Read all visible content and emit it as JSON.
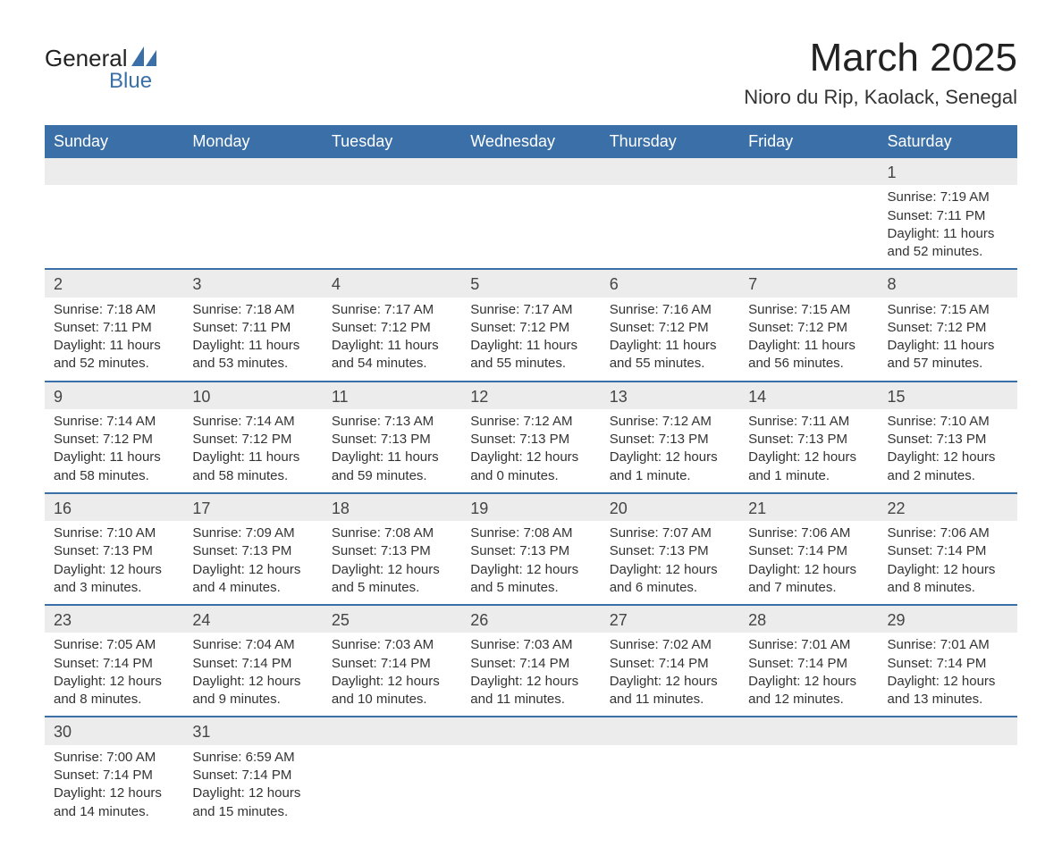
{
  "logo": {
    "top": "General",
    "bottom": "Blue",
    "sail_color": "#3b6fa8"
  },
  "title": "March 2025",
  "location": "Nioro du Rip, Kaolack, Senegal",
  "colors": {
    "header_bg": "#3b6fa8",
    "header_text": "#ffffff",
    "daynum_bg": "#ececec",
    "row_border": "#3b6fa8",
    "text": "#333333",
    "background": "#ffffff"
  },
  "typography": {
    "title_fontsize": 44,
    "location_fontsize": 22,
    "header_fontsize": 18,
    "daynum_fontsize": 18,
    "body_fontsize": 15
  },
  "weekdays": [
    "Sunday",
    "Monday",
    "Tuesday",
    "Wednesday",
    "Thursday",
    "Friday",
    "Saturday"
  ],
  "weeks": [
    [
      null,
      null,
      null,
      null,
      null,
      null,
      {
        "n": "1",
        "sunrise": "Sunrise: 7:19 AM",
        "sunset": "Sunset: 7:11 PM",
        "daylight": "Daylight: 11 hours and 52 minutes."
      }
    ],
    [
      {
        "n": "2",
        "sunrise": "Sunrise: 7:18 AM",
        "sunset": "Sunset: 7:11 PM",
        "daylight": "Daylight: 11 hours and 52 minutes."
      },
      {
        "n": "3",
        "sunrise": "Sunrise: 7:18 AM",
        "sunset": "Sunset: 7:11 PM",
        "daylight": "Daylight: 11 hours and 53 minutes."
      },
      {
        "n": "4",
        "sunrise": "Sunrise: 7:17 AM",
        "sunset": "Sunset: 7:12 PM",
        "daylight": "Daylight: 11 hours and 54 minutes."
      },
      {
        "n": "5",
        "sunrise": "Sunrise: 7:17 AM",
        "sunset": "Sunset: 7:12 PM",
        "daylight": "Daylight: 11 hours and 55 minutes."
      },
      {
        "n": "6",
        "sunrise": "Sunrise: 7:16 AM",
        "sunset": "Sunset: 7:12 PM",
        "daylight": "Daylight: 11 hours and 55 minutes."
      },
      {
        "n": "7",
        "sunrise": "Sunrise: 7:15 AM",
        "sunset": "Sunset: 7:12 PM",
        "daylight": "Daylight: 11 hours and 56 minutes."
      },
      {
        "n": "8",
        "sunrise": "Sunrise: 7:15 AM",
        "sunset": "Sunset: 7:12 PM",
        "daylight": "Daylight: 11 hours and 57 minutes."
      }
    ],
    [
      {
        "n": "9",
        "sunrise": "Sunrise: 7:14 AM",
        "sunset": "Sunset: 7:12 PM",
        "daylight": "Daylight: 11 hours and 58 minutes."
      },
      {
        "n": "10",
        "sunrise": "Sunrise: 7:14 AM",
        "sunset": "Sunset: 7:12 PM",
        "daylight": "Daylight: 11 hours and 58 minutes."
      },
      {
        "n": "11",
        "sunrise": "Sunrise: 7:13 AM",
        "sunset": "Sunset: 7:13 PM",
        "daylight": "Daylight: 11 hours and 59 minutes."
      },
      {
        "n": "12",
        "sunrise": "Sunrise: 7:12 AM",
        "sunset": "Sunset: 7:13 PM",
        "daylight": "Daylight: 12 hours and 0 minutes."
      },
      {
        "n": "13",
        "sunrise": "Sunrise: 7:12 AM",
        "sunset": "Sunset: 7:13 PM",
        "daylight": "Daylight: 12 hours and 1 minute."
      },
      {
        "n": "14",
        "sunrise": "Sunrise: 7:11 AM",
        "sunset": "Sunset: 7:13 PM",
        "daylight": "Daylight: 12 hours and 1 minute."
      },
      {
        "n": "15",
        "sunrise": "Sunrise: 7:10 AM",
        "sunset": "Sunset: 7:13 PM",
        "daylight": "Daylight: 12 hours and 2 minutes."
      }
    ],
    [
      {
        "n": "16",
        "sunrise": "Sunrise: 7:10 AM",
        "sunset": "Sunset: 7:13 PM",
        "daylight": "Daylight: 12 hours and 3 minutes."
      },
      {
        "n": "17",
        "sunrise": "Sunrise: 7:09 AM",
        "sunset": "Sunset: 7:13 PM",
        "daylight": "Daylight: 12 hours and 4 minutes."
      },
      {
        "n": "18",
        "sunrise": "Sunrise: 7:08 AM",
        "sunset": "Sunset: 7:13 PM",
        "daylight": "Daylight: 12 hours and 5 minutes."
      },
      {
        "n": "19",
        "sunrise": "Sunrise: 7:08 AM",
        "sunset": "Sunset: 7:13 PM",
        "daylight": "Daylight: 12 hours and 5 minutes."
      },
      {
        "n": "20",
        "sunrise": "Sunrise: 7:07 AM",
        "sunset": "Sunset: 7:13 PM",
        "daylight": "Daylight: 12 hours and 6 minutes."
      },
      {
        "n": "21",
        "sunrise": "Sunrise: 7:06 AM",
        "sunset": "Sunset: 7:14 PM",
        "daylight": "Daylight: 12 hours and 7 minutes."
      },
      {
        "n": "22",
        "sunrise": "Sunrise: 7:06 AM",
        "sunset": "Sunset: 7:14 PM",
        "daylight": "Daylight: 12 hours and 8 minutes."
      }
    ],
    [
      {
        "n": "23",
        "sunrise": "Sunrise: 7:05 AM",
        "sunset": "Sunset: 7:14 PM",
        "daylight": "Daylight: 12 hours and 8 minutes."
      },
      {
        "n": "24",
        "sunrise": "Sunrise: 7:04 AM",
        "sunset": "Sunset: 7:14 PM",
        "daylight": "Daylight: 12 hours and 9 minutes."
      },
      {
        "n": "25",
        "sunrise": "Sunrise: 7:03 AM",
        "sunset": "Sunset: 7:14 PM",
        "daylight": "Daylight: 12 hours and 10 minutes."
      },
      {
        "n": "26",
        "sunrise": "Sunrise: 7:03 AM",
        "sunset": "Sunset: 7:14 PM",
        "daylight": "Daylight: 12 hours and 11 minutes."
      },
      {
        "n": "27",
        "sunrise": "Sunrise: 7:02 AM",
        "sunset": "Sunset: 7:14 PM",
        "daylight": "Daylight: 12 hours and 11 minutes."
      },
      {
        "n": "28",
        "sunrise": "Sunrise: 7:01 AM",
        "sunset": "Sunset: 7:14 PM",
        "daylight": "Daylight: 12 hours and 12 minutes."
      },
      {
        "n": "29",
        "sunrise": "Sunrise: 7:01 AM",
        "sunset": "Sunset: 7:14 PM",
        "daylight": "Daylight: 12 hours and 13 minutes."
      }
    ],
    [
      {
        "n": "30",
        "sunrise": "Sunrise: 7:00 AM",
        "sunset": "Sunset: 7:14 PM",
        "daylight": "Daylight: 12 hours and 14 minutes."
      },
      {
        "n": "31",
        "sunrise": "Sunrise: 6:59 AM",
        "sunset": "Sunset: 7:14 PM",
        "daylight": "Daylight: 12 hours and 15 minutes."
      },
      null,
      null,
      null,
      null,
      null
    ]
  ]
}
